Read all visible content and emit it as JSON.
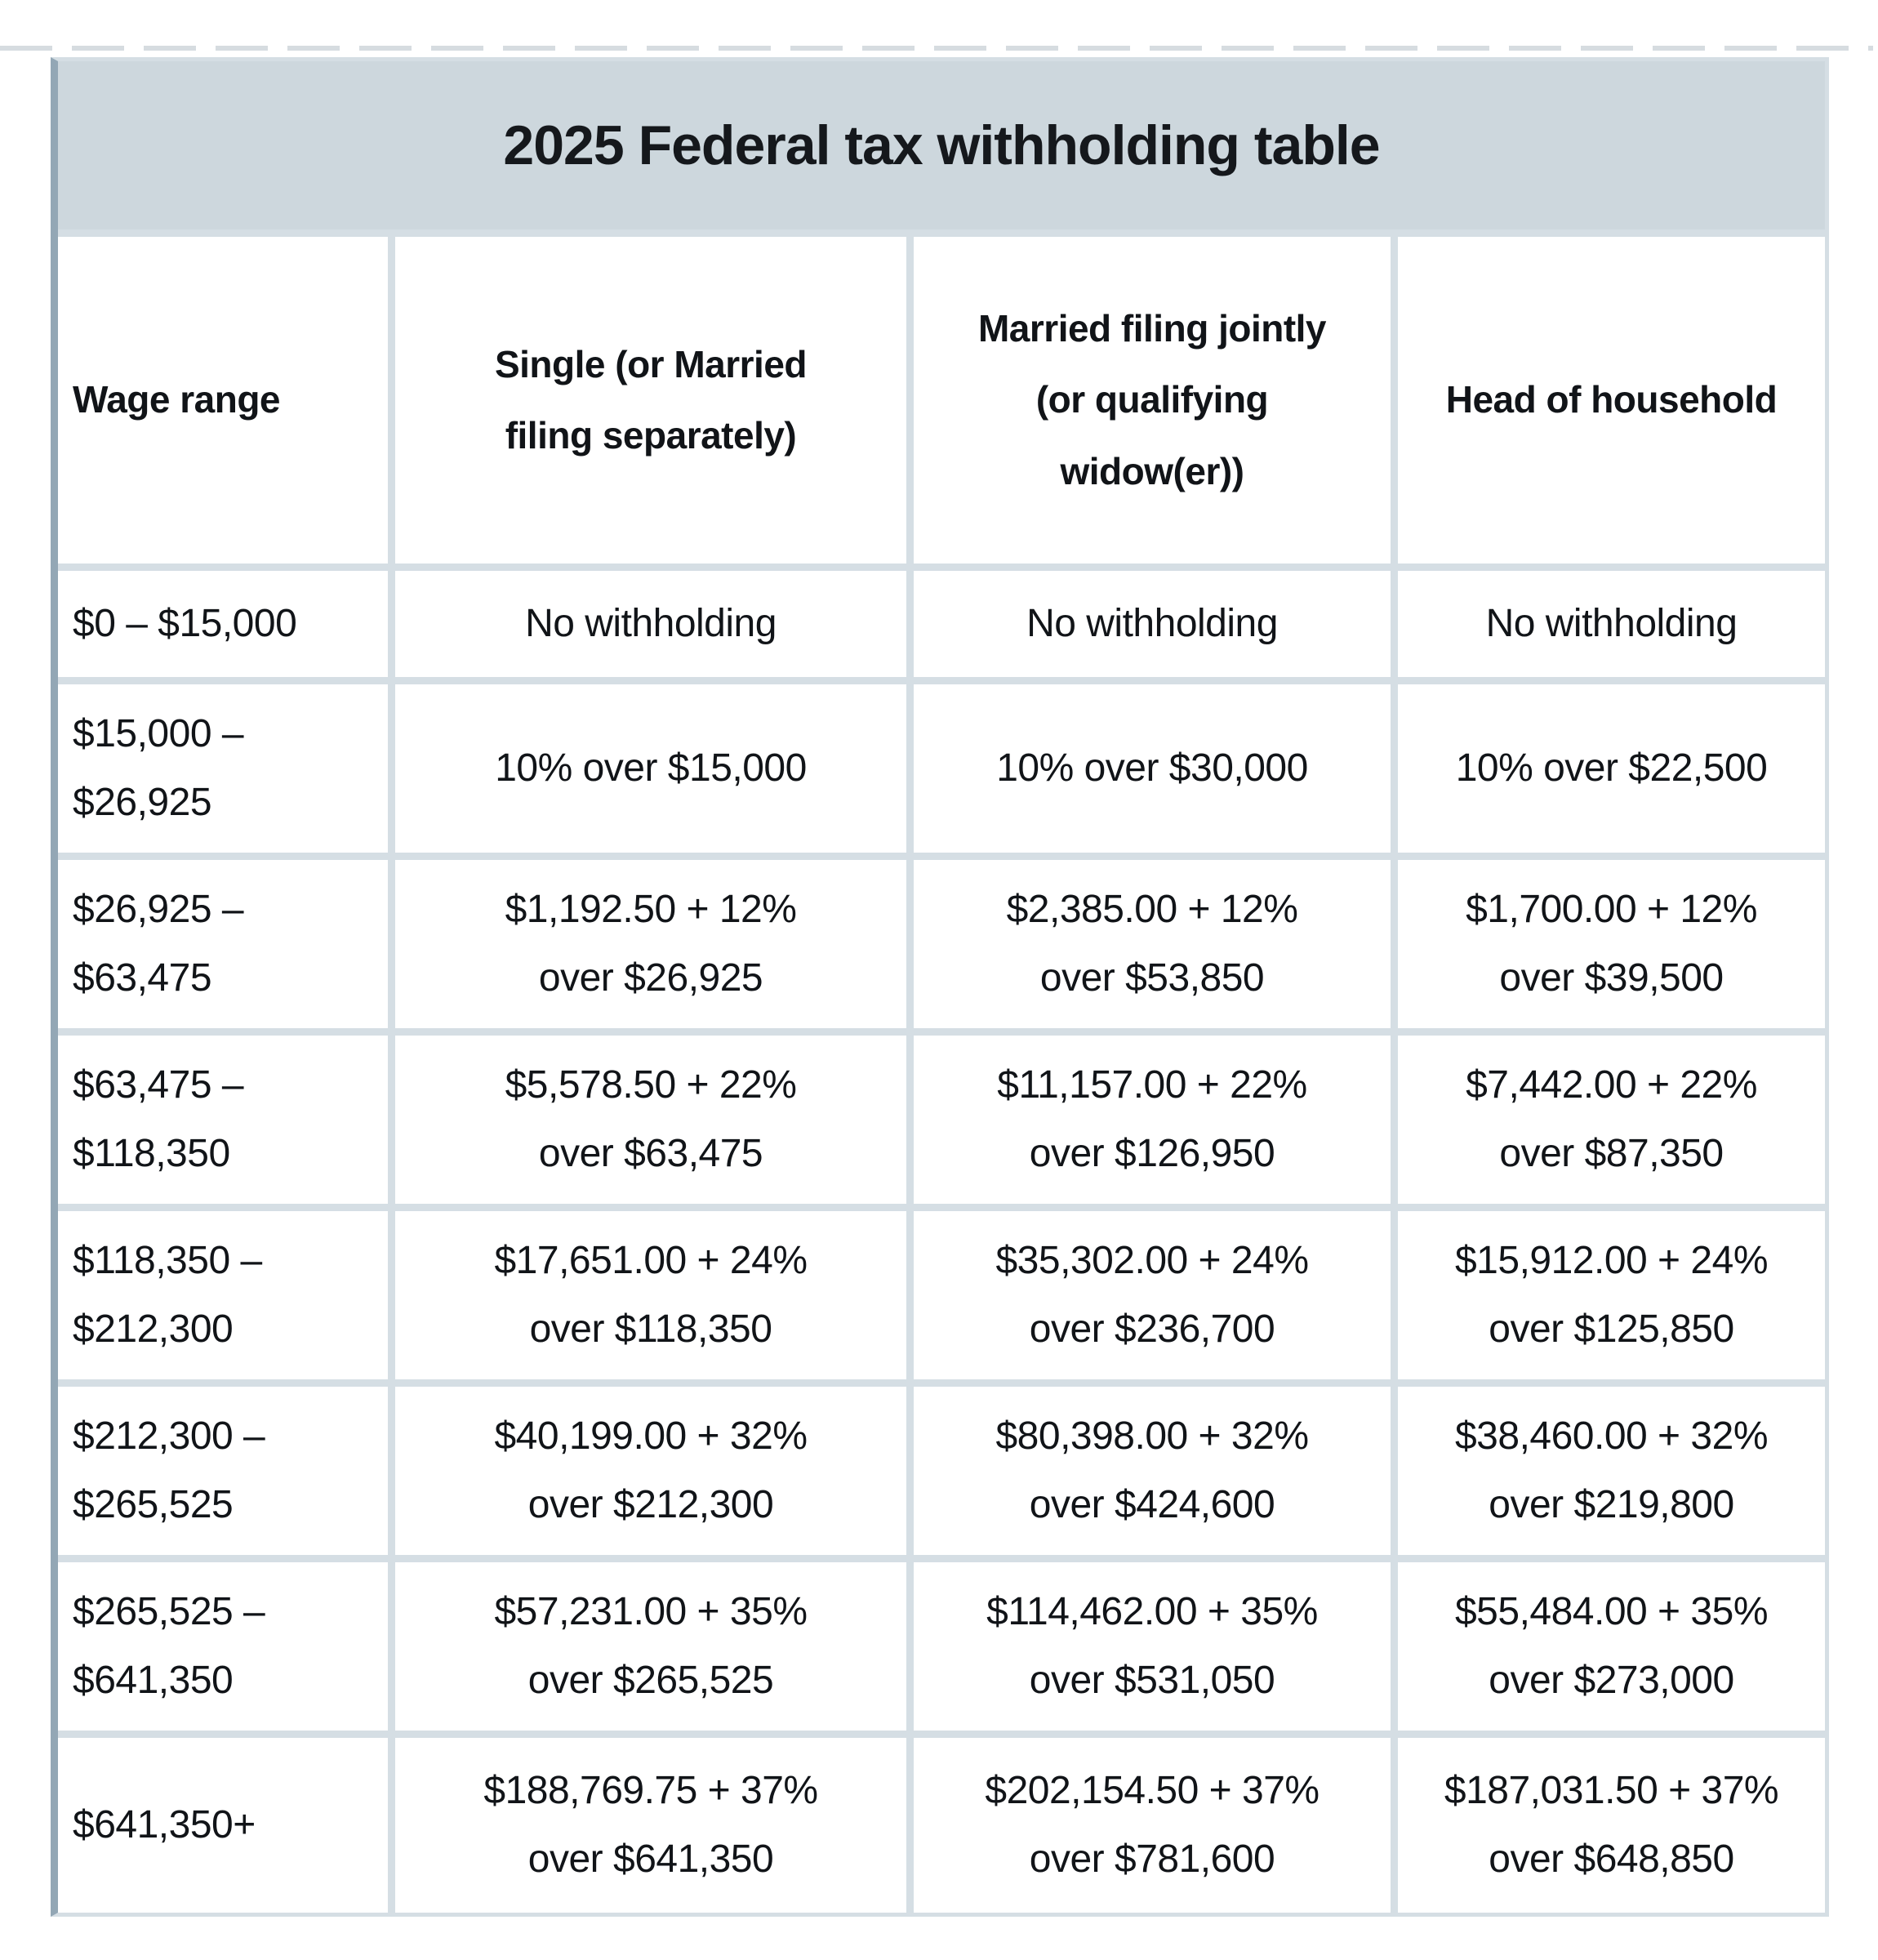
{
  "title": "2025 Federal tax withholding table",
  "table": {
    "columns": [
      "Wage range",
      "Single (or Married\nfiling separately)",
      "Married filing jointly\n(or qualifying\nwidow(er))",
      "Head of household"
    ],
    "rows": [
      [
        "$0 – $15,000",
        "No withholding",
        "No withholding",
        "No withholding"
      ],
      [
        "$15,000 –\n$26,925",
        "10% over $15,000",
        "10% over $30,000",
        "10% over $22,500"
      ],
      [
        "$26,925 –\n$63,475",
        "$1,192.50 + 12%\nover $26,925",
        "$2,385.00 + 12%\nover $53,850",
        "$1,700.00 + 12%\nover $39,500"
      ],
      [
        "$63,475 –\n$118,350",
        "$5,578.50 + 22%\nover $63,475",
        "$11,157.00 + 22%\nover $126,950",
        "$7,442.00 + 22%\nover $87,350"
      ],
      [
        "$118,350 –\n$212,300",
        "$17,651.00 + 24%\nover $118,350",
        "$35,302.00 + 24%\nover $236,700",
        "$15,912.00 + 24%\nover $125,850"
      ],
      [
        "$212,300 –\n$265,525",
        "$40,199.00 + 32%\nover $212,300",
        "$80,398.00 + 32%\nover $424,600",
        "$38,460.00 + 32%\nover $219,800"
      ],
      [
        "$265,525 –\n$641,350",
        "$57,231.00 + 35%\nover $265,525",
        "$114,462.00 + 35%\nover $531,050",
        "$55,484.00 + 35%\nover $273,000"
      ],
      [
        "$641,350+",
        "$188,769.75 + 37%\nover $641,350",
        "$202,154.50 + 37%\nover $781,600",
        "$187,031.50 + 37%\nover $648,850"
      ]
    ]
  },
  "colors": {
    "title_band_bg": "#cdd7dd",
    "grid_line": "#d5dee4",
    "left_edge": "#93a7b5",
    "cell_bg": "#ffffff",
    "text": "#111418"
  }
}
